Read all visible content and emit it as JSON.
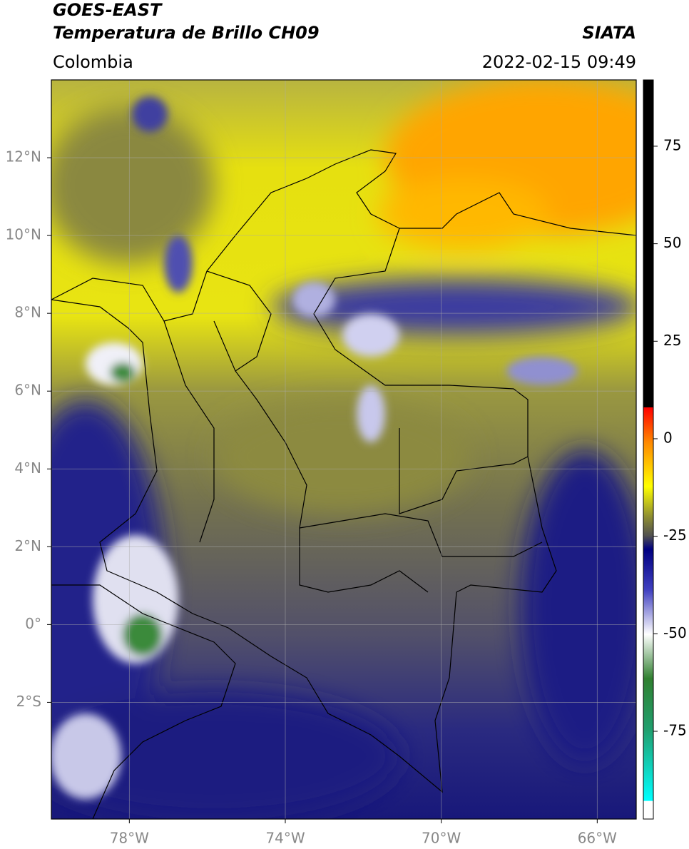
{
  "header": {
    "title": "GOES-EAST",
    "subtitle": "Temperatura de Brillo CH09",
    "source": "SIATA",
    "region": "Colombia",
    "datetime": "2022-02-15 09:49"
  },
  "map": {
    "lonlim": [
      -80,
      -65
    ],
    "latlim": [
      -5,
      14
    ],
    "lon_ticks": [
      {
        "value": -78,
        "label": "78°W"
      },
      {
        "value": -74,
        "label": "74°W"
      },
      {
        "value": -70,
        "label": "70°W"
      },
      {
        "value": -66,
        "label": "66°W"
      }
    ],
    "lat_ticks": [
      {
        "value": 12,
        "label": "12°N"
      },
      {
        "value": 10,
        "label": "10°N"
      },
      {
        "value": 8,
        "label": "8°N"
      },
      {
        "value": 6,
        "label": "6°N"
      },
      {
        "value": 4,
        "label": "4°N"
      },
      {
        "value": 2,
        "label": "2°N"
      },
      {
        "value": 0,
        "label": "0°"
      },
      {
        "value": -2,
        "label": "2°S"
      }
    ]
  },
  "colorbar": {
    "vlim": [
      -97.5,
      92
    ],
    "ticks": [
      75,
      50,
      25,
      0,
      -25,
      -50,
      -75
    ]
  }
}
